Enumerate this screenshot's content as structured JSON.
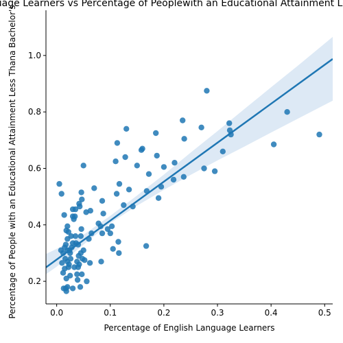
{
  "chart_data": {
    "type": "scatter",
    "title": "English Language Learners vs Percentage of Peoplewith an Educational Attainment Less Thana Bachelor's",
    "xlabel": "Percentage of English Language Learners",
    "ylabel": "Percentage of People with an Educational Attainment Less Thana Bachelor's",
    "xlim": [
      -0.02,
      0.515
    ],
    "ylim": [
      0.12,
      1.16
    ],
    "xticks": [
      0.0,
      0.1,
      0.2,
      0.3,
      0.4,
      0.5
    ],
    "xtick_labels": [
      "0.0",
      "0.1",
      "0.2",
      "0.3",
      "0.4",
      "0.5"
    ],
    "yticks": [
      0.2,
      0.4,
      0.6,
      0.8,
      1.0
    ],
    "ytick_labels": [
      "0.2",
      "0.4",
      "0.6",
      "0.8",
      "1.0"
    ],
    "grid": false,
    "regression": {
      "intercept": 0.277,
      "slope": 1.38,
      "ci_band": [
        [
          -0.02,
          0.225,
          0.297
        ],
        [
          0.0,
          0.252,
          0.315
        ],
        [
          0.05,
          0.33,
          0.365
        ],
        [
          0.1,
          0.406,
          0.432
        ],
        [
          0.15,
          0.468,
          0.504
        ],
        [
          0.2,
          0.524,
          0.578
        ],
        [
          0.25,
          0.577,
          0.656
        ],
        [
          0.3,
          0.628,
          0.732
        ],
        [
          0.35,
          0.677,
          0.81
        ],
        [
          0.4,
          0.727,
          0.887
        ],
        [
          0.45,
          0.776,
          0.964
        ],
        [
          0.515,
          0.84,
          1.066
        ]
      ]
    },
    "series": [
      {
        "points": [
          [
            0.005,
            0.545
          ],
          [
            0.008,
            0.31
          ],
          [
            0.009,
            0.51
          ],
          [
            0.01,
            0.265
          ],
          [
            0.012,
            0.23
          ],
          [
            0.012,
            0.3
          ],
          [
            0.013,
            0.175
          ],
          [
            0.014,
            0.435
          ],
          [
            0.015,
            0.245
          ],
          [
            0.015,
            0.32
          ],
          [
            0.016,
            0.28
          ],
          [
            0.017,
            0.33
          ],
          [
            0.017,
            0.175
          ],
          [
            0.018,
            0.165
          ],
          [
            0.018,
            0.21
          ],
          [
            0.018,
            0.38
          ],
          [
            0.02,
            0.395
          ],
          [
            0.02,
            0.27
          ],
          [
            0.02,
            0.31
          ],
          [
            0.02,
            0.35
          ],
          [
            0.02,
            0.18
          ],
          [
            0.022,
            0.25
          ],
          [
            0.022,
            0.375
          ],
          [
            0.023,
            0.26
          ],
          [
            0.024,
            0.31
          ],
          [
            0.025,
            0.3
          ],
          [
            0.025,
            0.22
          ],
          [
            0.026,
            0.28
          ],
          [
            0.027,
            0.36
          ],
          [
            0.028,
            0.32
          ],
          [
            0.03,
            0.455
          ],
          [
            0.03,
            0.43
          ],
          [
            0.03,
            0.335
          ],
          [
            0.03,
            0.175
          ],
          [
            0.032,
            0.42
          ],
          [
            0.033,
            0.25
          ],
          [
            0.034,
            0.43
          ],
          [
            0.035,
            0.36
          ],
          [
            0.035,
            0.455
          ],
          [
            0.036,
            0.335
          ],
          [
            0.038,
            0.27
          ],
          [
            0.038,
            0.225
          ],
          [
            0.039,
            0.205
          ],
          [
            0.04,
            0.33
          ],
          [
            0.04,
            0.25
          ],
          [
            0.041,
            0.29
          ],
          [
            0.042,
            0.26
          ],
          [
            0.042,
            0.475
          ],
          [
            0.043,
            0.465
          ],
          [
            0.044,
            0.18
          ],
          [
            0.045,
            0.3
          ],
          [
            0.045,
            0.36
          ],
          [
            0.046,
            0.515
          ],
          [
            0.046,
            0.385
          ],
          [
            0.047,
            0.49
          ],
          [
            0.047,
            0.225
          ],
          [
            0.048,
            0.28
          ],
          [
            0.05,
            0.61
          ],
          [
            0.05,
            0.31
          ],
          [
            0.052,
            0.275
          ],
          [
            0.055,
            0.445
          ],
          [
            0.056,
            0.2
          ],
          [
            0.06,
            0.35
          ],
          [
            0.062,
            0.265
          ],
          [
            0.063,
            0.45
          ],
          [
            0.065,
            0.37
          ],
          [
            0.07,
            0.53
          ],
          [
            0.078,
            0.405
          ],
          [
            0.082,
            0.395
          ],
          [
            0.083,
            0.27
          ],
          [
            0.085,
            0.485
          ],
          [
            0.085,
            0.37
          ],
          [
            0.087,
            0.44
          ],
          [
            0.095,
            0.385
          ],
          [
            0.1,
            0.37
          ],
          [
            0.103,
            0.395
          ],
          [
            0.105,
            0.315
          ],
          [
            0.11,
            0.625
          ],
          [
            0.112,
            0.51
          ],
          [
            0.113,
            0.69
          ],
          [
            0.115,
            0.34
          ],
          [
            0.116,
            0.3
          ],
          [
            0.117,
            0.545
          ],
          [
            0.125,
            0.47
          ],
          [
            0.128,
            0.64
          ],
          [
            0.13,
            0.74
          ],
          [
            0.135,
            0.525
          ],
          [
            0.142,
            0.465
          ],
          [
            0.15,
            0.61
          ],
          [
            0.158,
            0.665
          ],
          [
            0.16,
            0.67
          ],
          [
            0.167,
            0.325
          ],
          [
            0.168,
            0.52
          ],
          [
            0.172,
            0.58
          ],
          [
            0.185,
            0.725
          ],
          [
            0.187,
            0.645
          ],
          [
            0.19,
            0.495
          ],
          [
            0.195,
            0.535
          ],
          [
            0.2,
            0.605
          ],
          [
            0.218,
            0.56
          ],
          [
            0.22,
            0.62
          ],
          [
            0.235,
            0.77
          ],
          [
            0.237,
            0.57
          ],
          [
            0.238,
            0.705
          ],
          [
            0.27,
            0.745
          ],
          [
            0.275,
            0.6
          ],
          [
            0.28,
            0.875
          ],
          [
            0.295,
            0.59
          ],
          [
            0.31,
            0.66
          ],
          [
            0.322,
            0.76
          ],
          [
            0.323,
            0.735
          ],
          [
            0.325,
            0.72
          ],
          [
            0.405,
            0.685
          ],
          [
            0.43,
            0.8
          ],
          [
            0.49,
            0.72
          ]
        ]
      }
    ],
    "colors": {
      "point": "#1f77b4",
      "line": "#1f77b4",
      "band": "#c6dbef"
    }
  }
}
